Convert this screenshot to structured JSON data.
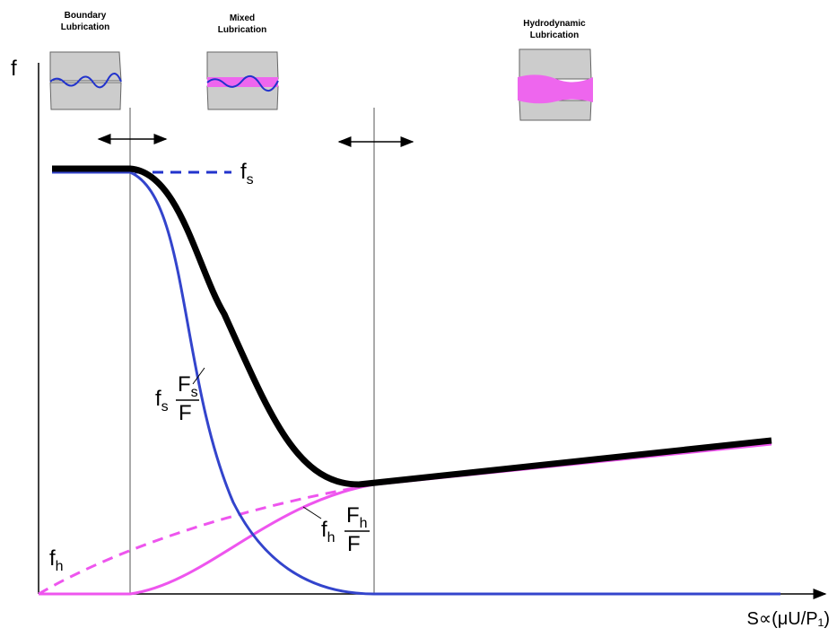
{
  "regimes": [
    [
      "Boundary",
      "Lubrication"
    ],
    [
      "Mixed",
      "Lubrication"
    ],
    [
      "Hydrodynamic",
      "Lubrication"
    ]
  ],
  "axes": {
    "y_label": "f",
    "x_label": "S∝(μU/P₁)"
  },
  "curve_labels": {
    "fs": {
      "f": "f",
      "sub": "s"
    },
    "fs_frac": {
      "f": "f",
      "sub": "s",
      "num": "F",
      "num_sub": "s",
      "den": "F"
    },
    "fh": {
      "f": "f",
      "sub": "h"
    },
    "fh_frac": {
      "f": "f",
      "sub": "h",
      "num": "F",
      "num_sub": "h",
      "den": "F"
    }
  }
}
